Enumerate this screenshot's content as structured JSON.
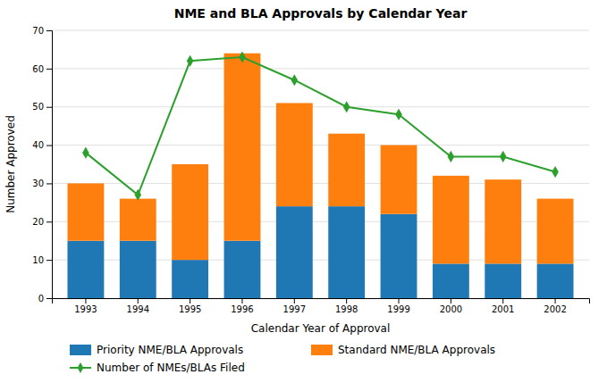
{
  "chart_data": {
    "type": "bar",
    "title": "NME and BLA Approvals by Calendar Year",
    "xlabel": "Calendar Year of Approval",
    "ylabel": "Number Approved",
    "categories": [
      "1993",
      "1994",
      "1995",
      "1996",
      "1997",
      "1998",
      "1999",
      "2000",
      "2001",
      "2002"
    ],
    "series": [
      {
        "name": "Priority NME/BLA Approvals",
        "values": [
          15,
          15,
          10,
          15,
          24,
          24,
          22,
          9,
          9,
          9
        ]
      },
      {
        "name": "Standard NME/BLA Approvals",
        "values": [
          15,
          11,
          25,
          49,
          27,
          19,
          18,
          23,
          22,
          17
        ]
      },
      {
        "name": "Number of NMEs/BLAs Filed",
        "type": "line",
        "marker": "diamond",
        "values": [
          38,
          27,
          62,
          63,
          57,
          50,
          48,
          37,
          37,
          33
        ]
      }
    ],
    "stacked": true,
    "ylim": [
      0,
      70
    ],
    "yticks": [
      0,
      10,
      20,
      30,
      40,
      50,
      60,
      70
    ],
    "grid": true,
    "legend": "bottom"
  }
}
